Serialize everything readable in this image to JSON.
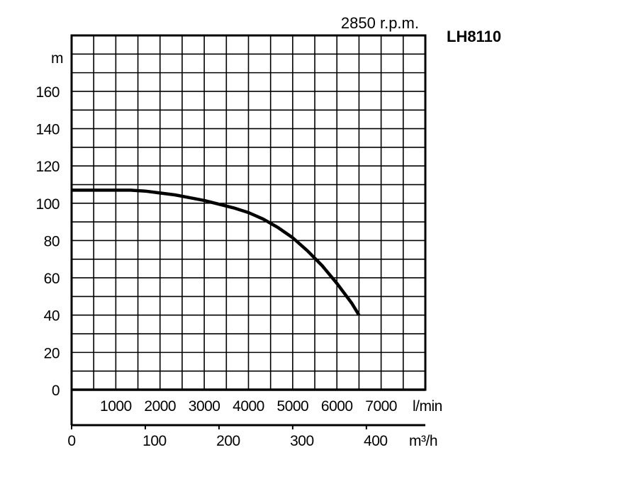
{
  "chart_data": {
    "type": "line",
    "header": "2850 r.p.m.",
    "model": "LH8110",
    "y_unit": "m",
    "y_ticks": [
      "0",
      "20",
      "40",
      "60",
      "80",
      "100",
      "120",
      "140",
      "160"
    ],
    "ylim": [
      0,
      190
    ],
    "x_unit_lmin": "l/min",
    "x_ticks_lmin": [
      "1000",
      "2000",
      "3000",
      "4000",
      "5000",
      "6000",
      "7000"
    ],
    "x_unit_m3h": "m³/h",
    "x_ticks_m3h": [
      "0",
      "100",
      "200",
      "300",
      "400"
    ],
    "xlim_m3h": [
      0,
      480
    ],
    "grid": true,
    "series": [
      {
        "x": [
          0,
          20,
          40,
          60,
          80,
          100,
          120,
          140,
          160,
          180,
          200,
          220,
          240,
          260,
          280,
          300,
          320,
          340,
          360,
          380,
          390
        ],
        "y": [
          107,
          107,
          107,
          107,
          107,
          106.5,
          105.5,
          104.5,
          103,
          101.5,
          99.5,
          97.5,
          95,
          91.5,
          87,
          81.5,
          74.5,
          66.5,
          57,
          46.5,
          40
        ]
      }
    ]
  }
}
